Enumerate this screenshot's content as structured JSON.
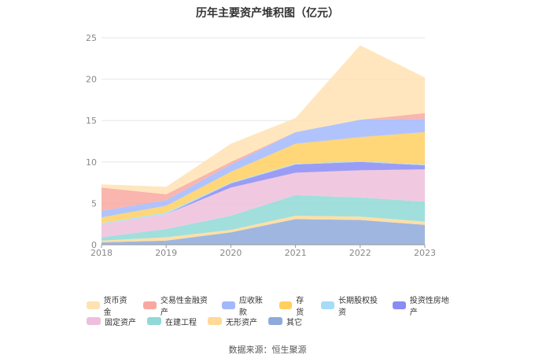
{
  "title": "历年主要资产堆积图（亿元）",
  "source": "数据来源：恒生聚源",
  "chart_data": {
    "type": "area",
    "stacked": true,
    "title": "历年主要资产堆积图（亿元）",
    "categories": [
      "2018",
      "2019",
      "2020",
      "2021",
      "2022",
      "2023"
    ],
    "y_ticks": [
      "0",
      "5",
      "10",
      "15",
      "20",
      "25"
    ],
    "ylim": [
      0,
      25
    ],
    "grid": true,
    "legend_position": "bottom",
    "series": [
      {
        "name": "其它",
        "color": "#8eaadb",
        "values": [
          0.3,
          0.5,
          1.5,
          3.1,
          3.0,
          2.4
        ]
      },
      {
        "name": "无形资产",
        "color": "#ffd996",
        "values": [
          0.2,
          0.4,
          0.3,
          0.4,
          0.4,
          0.4
        ]
      },
      {
        "name": "在建工程",
        "color": "#8fd9d6",
        "values": [
          0.4,
          1.0,
          1.7,
          2.5,
          2.3,
          2.4
        ]
      },
      {
        "name": "固定资产",
        "color": "#edbfdc",
        "values": [
          1.6,
          1.8,
          3.4,
          2.7,
          3.3,
          3.9
        ]
      },
      {
        "name": "投资性房地产",
        "color": "#8a8cf2",
        "values": [
          0.0,
          0.0,
          0.5,
          1.0,
          1.0,
          0.5
        ]
      },
      {
        "name": "长期股权投资",
        "color": "#a6dcf7",
        "values": [
          0.1,
          0.2,
          0.1,
          0.1,
          0.1,
          0.1
        ]
      },
      {
        "name": "存货",
        "color": "#ffd060",
        "values": [
          0.7,
          0.8,
          1.3,
          2.4,
          2.9,
          3.9
        ]
      },
      {
        "name": "应收账款",
        "color": "#a3b8fb",
        "values": [
          0.8,
          0.7,
          0.9,
          1.4,
          2.1,
          1.6
        ]
      },
      {
        "name": "交易性金融资产",
        "color": "#f8a8a0",
        "values": [
          2.8,
          0.7,
          0.3,
          0.0,
          0.0,
          0.7
        ]
      },
      {
        "name": "货币资金",
        "color": "#ffe2b3",
        "values": [
          0.4,
          0.9,
          2.2,
          1.7,
          9.0,
          4.3
        ]
      }
    ]
  },
  "legend": [
    [
      "货币资金",
      "交易性金融资产",
      "应收账款",
      "存货",
      "长期股权投资",
      "投资性房地产"
    ],
    [
      "固定资产",
      "在建工程",
      "无形资产",
      "其它"
    ]
  ]
}
